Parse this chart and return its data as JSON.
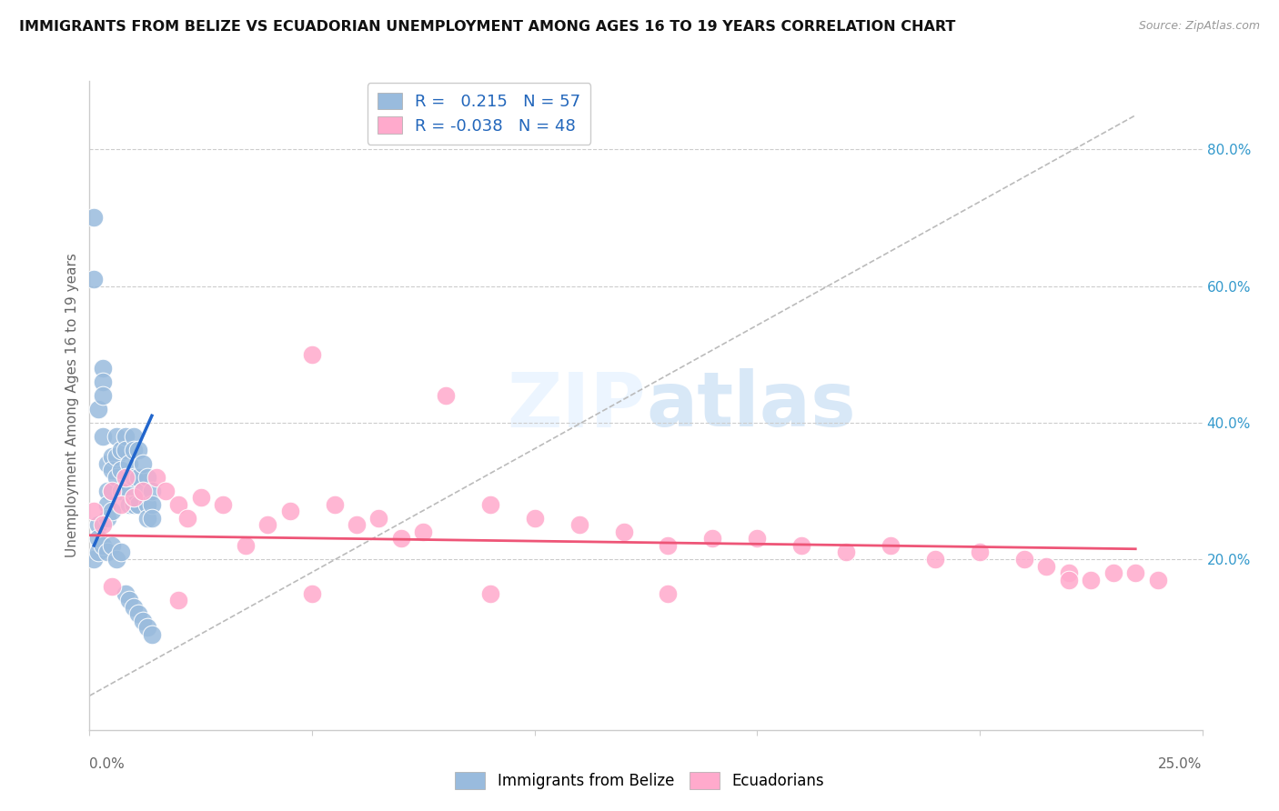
{
  "title": "IMMIGRANTS FROM BELIZE VS ECUADORIAN UNEMPLOYMENT AMONG AGES 16 TO 19 YEARS CORRELATION CHART",
  "source": "Source: ZipAtlas.com",
  "ylabel": "Unemployment Among Ages 16 to 19 years",
  "right_ytick_vals": [
    0.2,
    0.4,
    0.6,
    0.8
  ],
  "xlim": [
    0.0,
    0.25
  ],
  "ylim": [
    -0.05,
    0.9
  ],
  "blue_color": "#99BBDD",
  "pink_color": "#FFAACC",
  "trend_blue": "#2266CC",
  "trend_pink": "#EE5577",
  "belize_x": [
    0.001,
    0.001,
    0.002,
    0.002,
    0.003,
    0.003,
    0.003,
    0.003,
    0.004,
    0.004,
    0.004,
    0.004,
    0.005,
    0.005,
    0.005,
    0.005,
    0.006,
    0.006,
    0.006,
    0.007,
    0.007,
    0.007,
    0.008,
    0.008,
    0.009,
    0.009,
    0.009,
    0.01,
    0.01,
    0.01,
    0.01,
    0.011,
    0.011,
    0.011,
    0.012,
    0.012,
    0.013,
    0.013,
    0.013,
    0.014,
    0.014,
    0.014,
    0.001,
    0.002,
    0.002,
    0.003,
    0.004,
    0.005,
    0.006,
    0.007,
    0.008,
    0.009,
    0.01,
    0.011,
    0.012,
    0.013,
    0.014
  ],
  "belize_y": [
    0.7,
    0.61,
    0.42,
    0.25,
    0.48,
    0.46,
    0.44,
    0.38,
    0.34,
    0.3,
    0.28,
    0.26,
    0.35,
    0.33,
    0.3,
    0.27,
    0.38,
    0.35,
    0.32,
    0.36,
    0.33,
    0.3,
    0.38,
    0.36,
    0.34,
    0.3,
    0.28,
    0.38,
    0.36,
    0.32,
    0.28,
    0.36,
    0.32,
    0.28,
    0.34,
    0.3,
    0.32,
    0.28,
    0.26,
    0.3,
    0.28,
    0.26,
    0.2,
    0.21,
    0.23,
    0.22,
    0.21,
    0.22,
    0.2,
    0.21,
    0.15,
    0.14,
    0.13,
    0.12,
    0.11,
    0.1,
    0.09
  ],
  "ecuador_x": [
    0.001,
    0.003,
    0.005,
    0.007,
    0.008,
    0.01,
    0.012,
    0.015,
    0.017,
    0.02,
    0.022,
    0.025,
    0.03,
    0.035,
    0.04,
    0.045,
    0.05,
    0.055,
    0.06,
    0.065,
    0.07,
    0.075,
    0.08,
    0.09,
    0.1,
    0.11,
    0.12,
    0.13,
    0.14,
    0.15,
    0.16,
    0.17,
    0.18,
    0.19,
    0.2,
    0.21,
    0.215,
    0.22,
    0.225,
    0.23,
    0.235,
    0.24,
    0.005,
    0.02,
    0.05,
    0.09,
    0.13,
    0.22
  ],
  "ecuador_y": [
    0.27,
    0.25,
    0.3,
    0.28,
    0.32,
    0.29,
    0.3,
    0.32,
    0.3,
    0.28,
    0.26,
    0.29,
    0.28,
    0.22,
    0.25,
    0.27,
    0.5,
    0.28,
    0.25,
    0.26,
    0.23,
    0.24,
    0.44,
    0.28,
    0.26,
    0.25,
    0.24,
    0.22,
    0.23,
    0.23,
    0.22,
    0.21,
    0.22,
    0.2,
    0.21,
    0.2,
    0.19,
    0.18,
    0.17,
    0.18,
    0.18,
    0.17,
    0.16,
    0.14,
    0.15,
    0.15,
    0.15,
    0.17
  ],
  "blue_trendline": [
    [
      0.001,
      0.014
    ],
    [
      0.22,
      0.41
    ]
  ],
  "pink_trendline": [
    [
      0.0,
      0.235
    ],
    [
      0.235,
      0.215
    ]
  ],
  "diag_line": [
    [
      0.0,
      0.235
    ],
    [
      0.0,
      0.85
    ]
  ]
}
